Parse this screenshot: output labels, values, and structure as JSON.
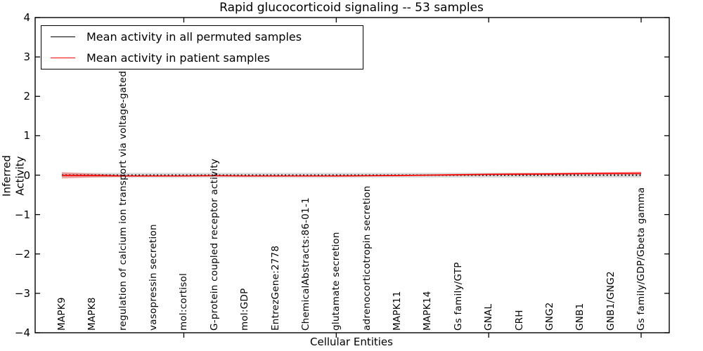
{
  "chart_data": {
    "type": "line",
    "title": "Rapid glucocorticoid signaling -- 53 samples",
    "xlabel": "Cellular Entities",
    "ylabel": "Inferred Activity",
    "ylim": [
      -4,
      4
    ],
    "ytick_labels": [
      "4",
      "3",
      "2",
      "1",
      "0",
      "−1",
      "−2",
      "−3",
      "−4"
    ],
    "ytick_values": [
      4,
      3,
      2,
      1,
      0,
      -1,
      -2,
      -3,
      -4
    ],
    "xtick_marks_at_category_index": [
      4,
      9,
      14,
      19
    ],
    "grid": false,
    "legend_position": "upper left",
    "categories": [
      "MAPK9",
      "MAPK8",
      "regulation of calcium ion transport via voltage-gated channel",
      "vasopressin secretion",
      "mol:cortisol",
      "G-protein coupled receptor activity",
      "mol:GDP",
      "EntrezGene:2778",
      "ChemicalAbstracts:86-01-1",
      "glutamate secretion",
      "adrenocorticotropin secretion",
      "MAPK11",
      "MAPK14",
      "Gs family/GTP",
      "GNAL",
      "CRH",
      "GNG2",
      "GNB1",
      "GNB1/GNG2",
      "Gs family/GDP/Gbeta gamma"
    ],
    "series": [
      {
        "name": "Mean activity in all permuted samples",
        "color": "#000000",
        "line_style": "dotted",
        "values": [
          0,
          0,
          0,
          0,
          0,
          0,
          0,
          0,
          0,
          0,
          0,
          0,
          0,
          0,
          0,
          0,
          0,
          0,
          0,
          0
        ],
        "band_halfwidth": [
          0.06,
          0.06,
          0.06,
          0.06,
          0.06,
          0.06,
          0.06,
          0.06,
          0.06,
          0.06,
          0.06,
          0.06,
          0.06,
          0.06,
          0.06,
          0.06,
          0.06,
          0.06,
          0.06,
          0.06
        ],
        "band_color": "#808080",
        "band_opacity": 0.3
      },
      {
        "name": "Mean activity in patient samples",
        "color": "#ff0000",
        "line_style": "solid",
        "values": [
          -0.005,
          -0.01,
          -0.02,
          -0.02,
          -0.02,
          -0.015,
          -0.02,
          -0.02,
          -0.02,
          -0.02,
          -0.015,
          -0.01,
          0.0,
          0.01,
          0.02,
          0.025,
          0.03,
          0.04,
          0.045,
          0.05
        ],
        "band_halfwidth": [
          0.085,
          0.05,
          0.02,
          0.015,
          0.012,
          0.012,
          0.012,
          0.012,
          0.012,
          0.015,
          0.015,
          0.018,
          0.02,
          0.022,
          0.025,
          0.028,
          0.028,
          0.03,
          0.032,
          0.04
        ],
        "band_color": "#ff0000",
        "band_opacity": 0.28
      }
    ]
  },
  "colors": {
    "frame": "#000000",
    "background": "#ffffff",
    "accent_red": "#ff0000"
  }
}
